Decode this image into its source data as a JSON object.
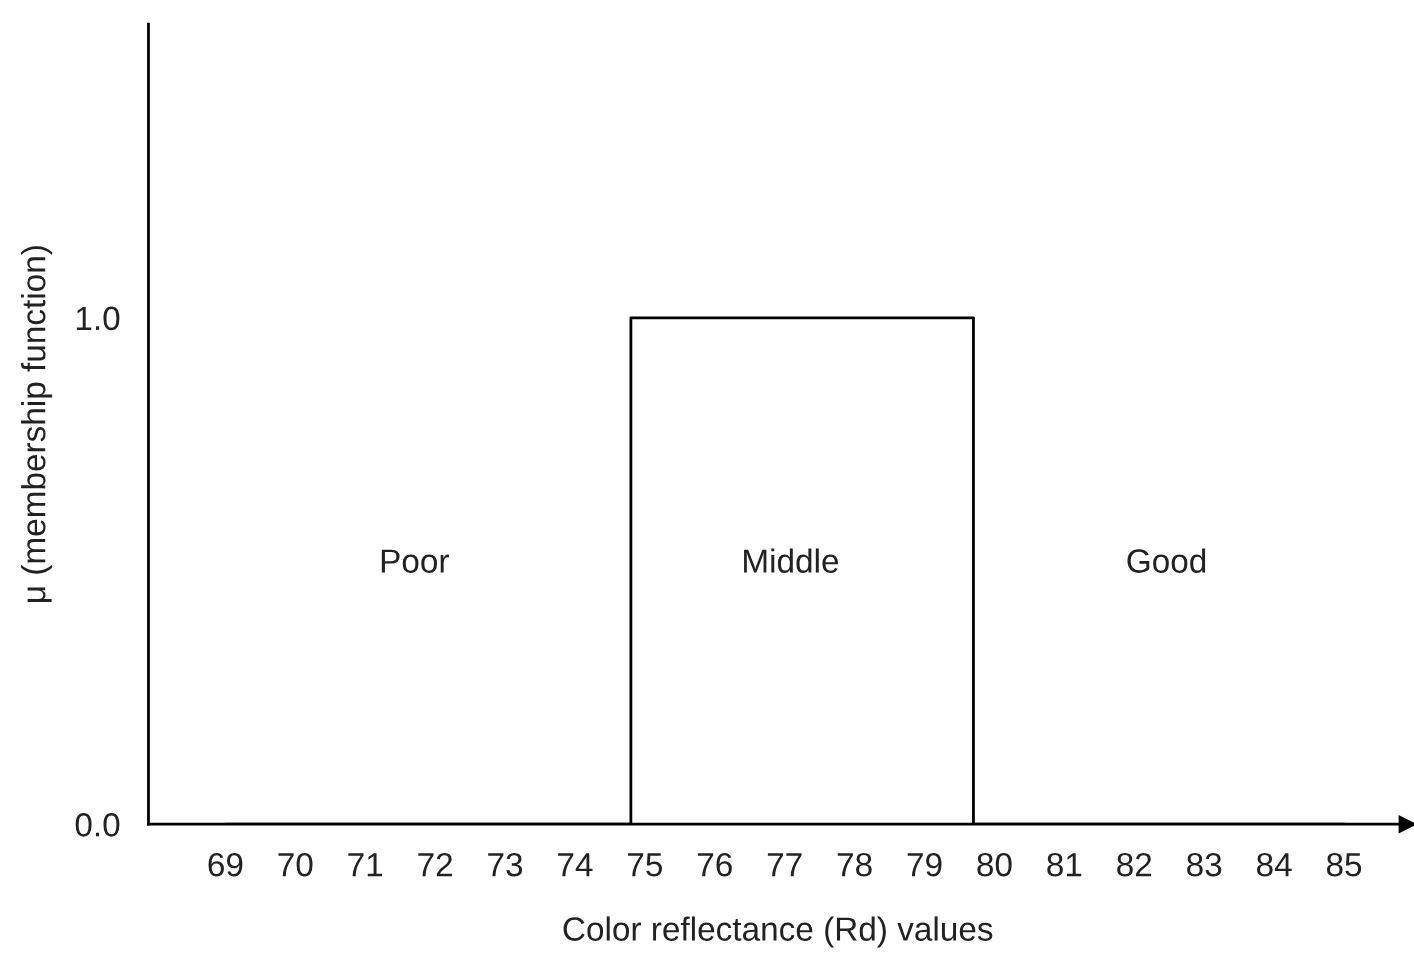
{
  "chart_data": {
    "type": "step",
    "xlabel": "Color reflectance (Rd) values",
    "ylabel": "μ (membership function)",
    "series": [
      {
        "color": "#000000",
        "x": [
          69,
          74.8,
          79.7,
          85
        ],
        "values": [
          0,
          1.0,
          0,
          0
        ]
      }
    ],
    "xlim": [
      67.9,
      85.9
    ],
    "ylim": [
      0,
      1.58
    ],
    "xticks": [
      69,
      70,
      71,
      72,
      73,
      74,
      75,
      76,
      77,
      78,
      79,
      80,
      81,
      82,
      83,
      84,
      85
    ],
    "yticks": [
      {
        "value": 0,
        "label": "0.0"
      },
      {
        "value": 1.0,
        "label": "1.0"
      }
    ],
    "marker": "none",
    "line_style": "solid",
    "grid": false,
    "legend": false,
    "annotations": [
      "Poor",
      "Middle",
      "Good"
    ]
  }
}
